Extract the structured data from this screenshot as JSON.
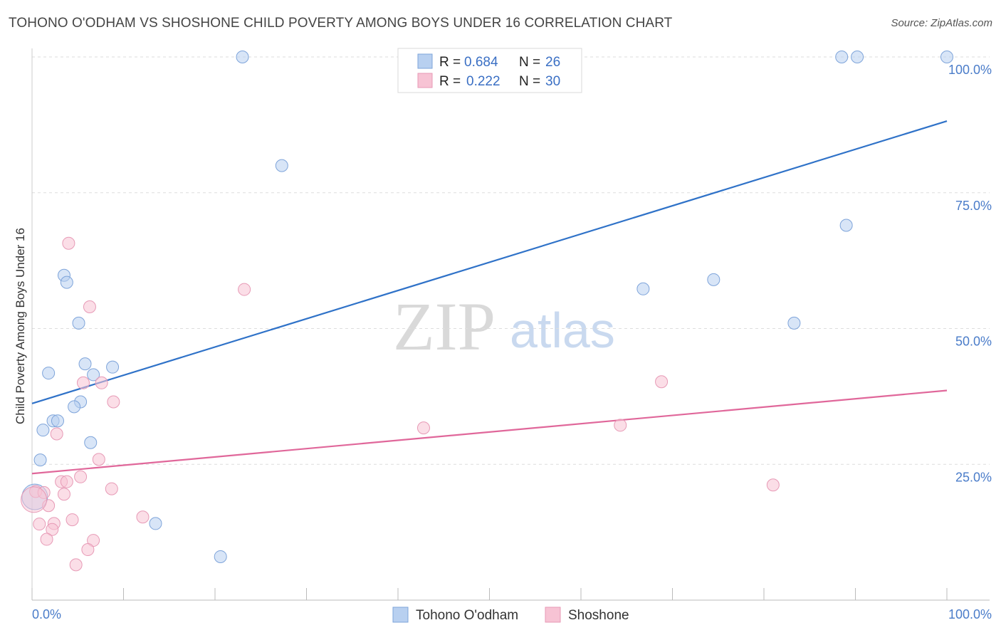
{
  "title": "TOHONO O'ODHAM VS SHOSHONE CHILD POVERTY AMONG BOYS UNDER 16 CORRELATION CHART",
  "source": "Source: ZipAtlas.com",
  "watermark": {
    "zip": "ZIP",
    "atlas": "atlas"
  },
  "colors": {
    "blue": "#4a7cc9",
    "blue_fill": "#b8d0f0",
    "blue_line": "#2f72c8",
    "pink": "#e07ba0",
    "pink_fill": "#f7c3d4",
    "pink_line": "#e0679a"
  },
  "chart_data": {
    "type": "scatter",
    "title": "TOHONO O'ODHAM VS SHOSHONE CHILD POVERTY AMONG BOYS UNDER 16 CORRELATION CHART",
    "xlabel": "",
    "ylabel": "Child Poverty Among Boys Under 16",
    "xlim": [
      0,
      100
    ],
    "ylim": [
      0,
      100
    ],
    "x_tick_labels": [
      "0.0%",
      "100.0%"
    ],
    "y_tick_labels": [
      "25.0%",
      "50.0%",
      "75.0%",
      "100.0%"
    ],
    "y_ticks": [
      25,
      50,
      75,
      100
    ],
    "series": [
      {
        "name": "Tohono O'odham",
        "color": "#4a7cc9",
        "R": "0.684",
        "N": "26",
        "trend": [
          [
            0,
            36.2
          ],
          [
            100,
            88.2
          ]
        ],
        "points": [
          [
            23.0,
            100
          ],
          [
            88.5,
            100
          ],
          [
            90.2,
            100
          ],
          [
            100,
            100
          ],
          [
            27.3,
            80.0
          ],
          [
            89.0,
            69.0
          ],
          [
            3.5,
            59.8
          ],
          [
            3.8,
            58.5
          ],
          [
            66.8,
            57.3
          ],
          [
            74.5,
            59.0
          ],
          [
            5.1,
            51.0
          ],
          [
            83.3,
            51.0
          ],
          [
            1.8,
            41.8
          ],
          [
            5.8,
            43.5
          ],
          [
            8.8,
            42.9
          ],
          [
            6.7,
            41.5
          ],
          [
            5.3,
            36.5
          ],
          [
            4.6,
            35.6
          ],
          [
            2.3,
            33.0
          ],
          [
            2.8,
            33.0
          ],
          [
            1.2,
            31.3
          ],
          [
            6.4,
            29.0
          ],
          [
            0.9,
            25.8
          ],
          [
            13.5,
            14.1
          ],
          [
            20.6,
            8.0
          ],
          [
            0.3,
            19.0
          ]
        ]
      },
      {
        "name": "Shoshone",
        "color": "#e07ba0",
        "R": "0.222",
        "N": "30",
        "trend": [
          [
            0,
            23.3
          ],
          [
            100,
            38.6
          ]
        ],
        "points": [
          [
            4.0,
            65.7
          ],
          [
            23.2,
            57.2
          ],
          [
            6.3,
            54.0
          ],
          [
            5.6,
            40.0
          ],
          [
            7.6,
            40.0
          ],
          [
            68.8,
            40.2
          ],
          [
            8.9,
            36.5
          ],
          [
            42.8,
            31.7
          ],
          [
            64.3,
            32.2
          ],
          [
            2.7,
            30.6
          ],
          [
            7.3,
            25.9
          ],
          [
            5.3,
            22.7
          ],
          [
            3.2,
            21.8
          ],
          [
            3.8,
            21.8
          ],
          [
            0.4,
            20.0
          ],
          [
            1.3,
            19.8
          ],
          [
            3.5,
            19.5
          ],
          [
            8.7,
            20.5
          ],
          [
            81.0,
            21.2
          ],
          [
            1.8,
            17.4
          ],
          [
            12.1,
            15.3
          ],
          [
            4.4,
            14.8
          ],
          [
            0.8,
            14.0
          ],
          [
            2.4,
            14.1
          ],
          [
            2.2,
            13.0
          ],
          [
            1.6,
            11.2
          ],
          [
            6.7,
            11.0
          ],
          [
            6.1,
            9.3
          ],
          [
            4.8,
            6.5
          ],
          [
            0.2,
            18.5
          ]
        ]
      }
    ],
    "legend": {
      "position": "top-center"
    }
  },
  "legend": {
    "r_label": "R = ",
    "n_label": "N = ",
    "series1": {
      "r": "0.684",
      "n": "26"
    },
    "series2": {
      "r": "0.222",
      "n": "30"
    }
  },
  "bottom_legend": {
    "series1": "Tohono O'odham",
    "series2": "Shoshone"
  }
}
